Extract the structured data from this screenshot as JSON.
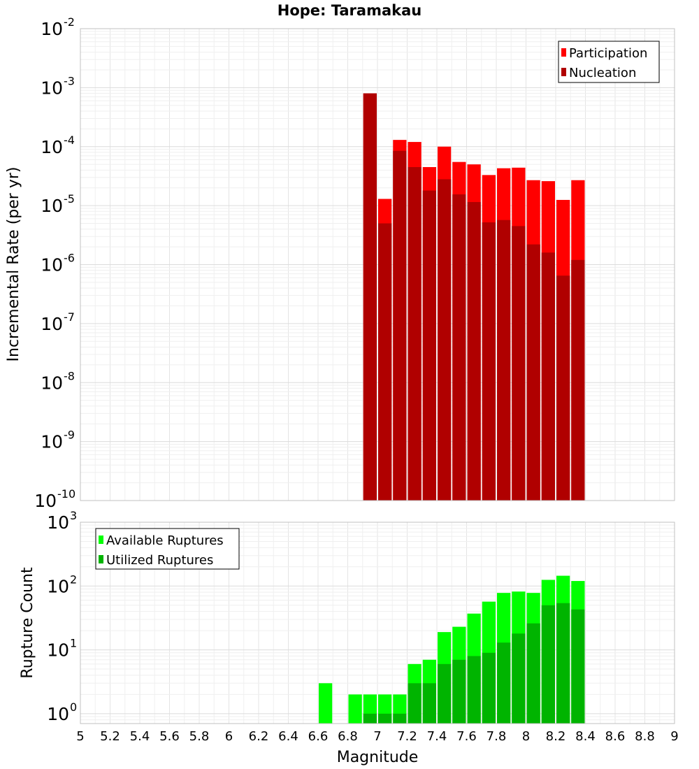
{
  "chart_data": [
    {
      "type": "bar",
      "title": "Hope: Taramakau",
      "xlabel": "",
      "ylabel": "Incremental Rate (per yr)",
      "xlim": [
        5,
        9
      ],
      "ylim": [
        1e-10,
        0.01
      ],
      "yscale": "log",
      "grid": true,
      "legend_position": "top-right",
      "bin_width": 0.1,
      "x": [
        6.95,
        7.05,
        7.15,
        7.25,
        7.35,
        7.45,
        7.55,
        7.65,
        7.75,
        7.85,
        7.95,
        8.05,
        8.15,
        8.25,
        8.35
      ],
      "series": [
        {
          "name": "Participation",
          "color": "#ff0000",
          "values": [
            0.0008,
            1.3e-05,
            0.00013,
            0.00012,
            4.5e-05,
            0.0001,
            5.5e-05,
            5e-05,
            3.3e-05,
            4.3e-05,
            4.4e-05,
            2.7e-05,
            2.6e-05,
            1.25e-05,
            2.7e-05
          ]
        },
        {
          "name": "Nucleation",
          "color": "#b00000",
          "values": [
            0.0008,
            5e-06,
            8.5e-05,
            4.5e-05,
            1.8e-05,
            2.8e-05,
            1.55e-05,
            1.15e-05,
            5.2e-06,
            5.7e-06,
            4.5e-06,
            2.2e-06,
            1.6e-06,
            6.5e-07,
            1.2e-06
          ]
        }
      ]
    },
    {
      "type": "bar",
      "title": "",
      "xlabel": "Magnitude",
      "ylabel": "Rupture Count",
      "xlim": [
        5,
        9
      ],
      "ylim": [
        0.7,
        1000
      ],
      "yscale": "log",
      "grid": true,
      "legend_position": "top-left",
      "bin_width": 0.1,
      "x": [
        6.65,
        6.85,
        6.95,
        7.05,
        7.15,
        7.25,
        7.35,
        7.45,
        7.55,
        7.65,
        7.75,
        7.85,
        7.95,
        8.05,
        8.15,
        8.25,
        8.35
      ],
      "series": [
        {
          "name": "Available Ruptures",
          "color": "#00ff00",
          "values": [
            3,
            2,
            2,
            2,
            2,
            6,
            7,
            19,
            23,
            37,
            57,
            78,
            82,
            78,
            125,
            145,
            120
          ]
        },
        {
          "name": "Utilized Ruptures",
          "color": "#00b400",
          "values": [
            0,
            0,
            1,
            1,
            1,
            3,
            3,
            6,
            7,
            8,
            9,
            13,
            18,
            26,
            50,
            54,
            43
          ]
        }
      ],
      "xticks": [
        "5",
        "5.2",
        "5.4",
        "5.6",
        "5.8",
        "6",
        "6.2",
        "6.4",
        "6.6",
        "6.8",
        "7",
        "7.2",
        "7.4",
        "7.6",
        "7.8",
        "8",
        "8.2",
        "8.4",
        "8.6",
        "8.8",
        "9"
      ]
    }
  ]
}
